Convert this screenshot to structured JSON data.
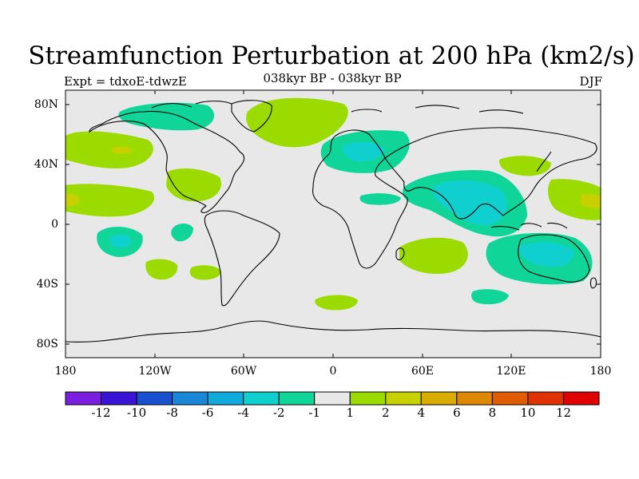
{
  "title": "Streamfunction Perturbation at 200 hPa (km2/s)",
  "subtitle": "038kyr BP - 038kyr BP",
  "experiment": "Expt = tdxoE-tdwzE",
  "season": "DJF",
  "lat_ticks": [
    "80N",
    "40N",
    "0",
    "40S",
    "80S"
  ],
  "lon_ticks": [
    "180",
    "120W",
    "60W",
    "0",
    "60E",
    "120E",
    "180"
  ],
  "colorbar": {
    "labels": [
      "-12",
      "-10",
      "-8",
      "-6",
      "-4",
      "-2",
      "-1",
      "1",
      "2",
      "4",
      "6",
      "8",
      "10",
      "12"
    ],
    "colors": [
      "#7a1fe0",
      "#3a14d6",
      "#1a4fd0",
      "#1a86d8",
      "#10aadb",
      "#10cfcf",
      "#10d598",
      "#e8e8e8",
      "#9cdb00",
      "#c8d000",
      "#d9ad00",
      "#dd8800",
      "#df5c00",
      "#e03200",
      "#e00000"
    ]
  },
  "colors": {
    "ocean_land_bg": "#e8e8e8",
    "coast": "#000000"
  }
}
